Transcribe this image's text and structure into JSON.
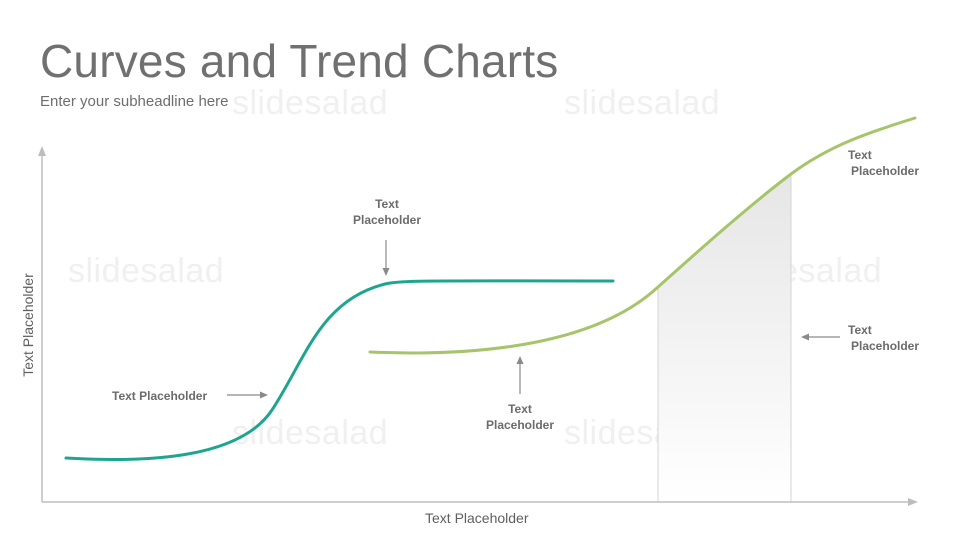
{
  "slide": {
    "title": "Curves and Trend Charts",
    "subtitle": "Enter your subheadline here"
  },
  "watermark": "slidesalad",
  "axes": {
    "x_label": "Text Placeholder",
    "y_label": "Text Placeholder"
  },
  "labels": {
    "left": "Text Placeholder",
    "top_line1": "Text",
    "top_line2": "Placeholder",
    "bottom_line1": "Text",
    "bottom_line2": "Placeholder",
    "right_top_line1": "Text",
    "right_top_line2": "Placeholder",
    "right_mid_line1": "Text",
    "right_mid_line2": "Placeholder"
  },
  "colors": {
    "teal_curve": "#1fa58f",
    "green_curve": "#a6c46a",
    "axis": "#bdbdbd",
    "arrow": "#8a8a8a"
  }
}
